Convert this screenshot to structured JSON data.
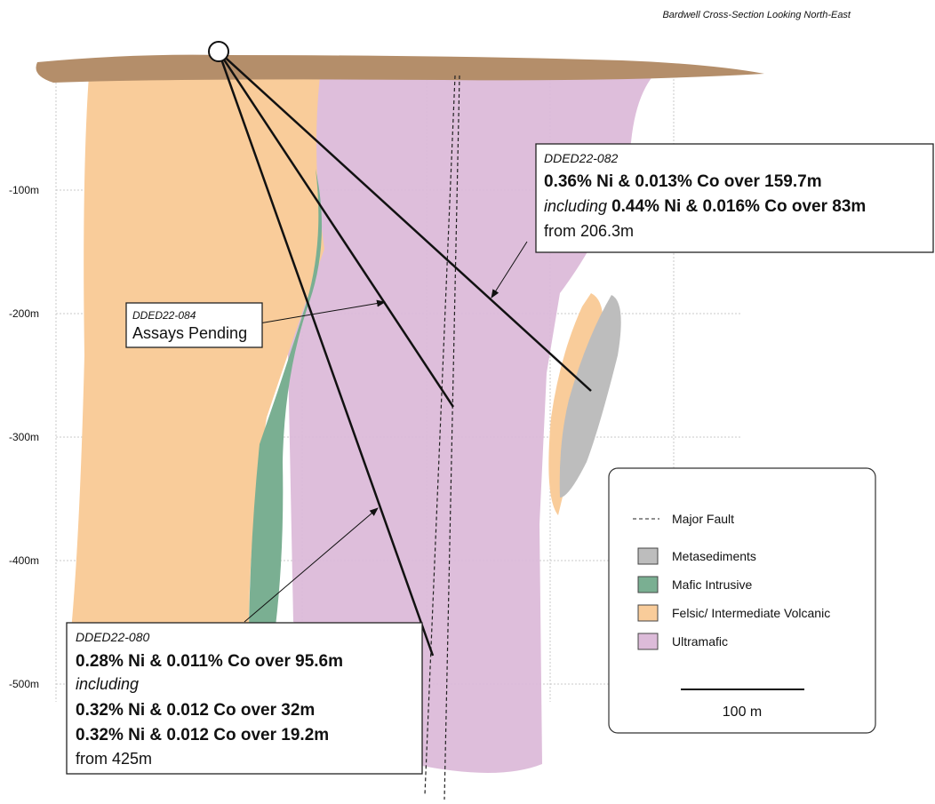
{
  "title": "Bardwell Cross-Section Looking North-East",
  "depth_labels": [
    "-100m",
    "-200m",
    "-300m",
    "-400m",
    "-500m"
  ],
  "callouts": [
    {
      "hole": "DDED22-082",
      "lines": [
        "0.36% Ni & 0.013% Co over 159.7m",
        "including",
        "0.44% Ni & 0.016% Co over 83m",
        "from 206.3m"
      ]
    },
    {
      "hole": "DDED22-084",
      "lines": [
        "Assays Pending"
      ]
    },
    {
      "hole": "DDED22-080",
      "lines": [
        "0.28% Ni & 0.011% Co over 95.6m",
        "including",
        "0.32% Ni & 0.012 Co over 32m",
        "0.32% Ni & 0.012 Co over 19.2m",
        "from 425m"
      ]
    }
  ],
  "legend": {
    "items": [
      "Major Fault",
      "Metasediments",
      "Mafic Intrusive",
      "Felsic/ Intermediate Volcanic",
      "Ultramafic"
    ],
    "scale": "100 m"
  }
}
